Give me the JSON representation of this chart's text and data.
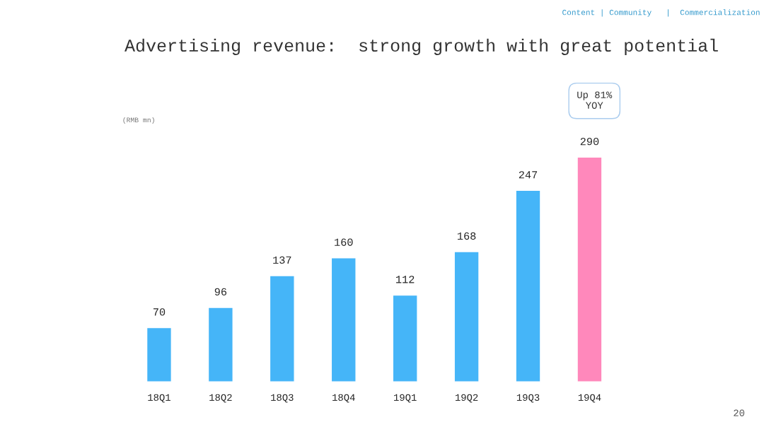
{
  "chart_data": {
    "type": "bar",
    "title": "Advertising revenue:  strong growth with great potential",
    "categories": [
      "18Q1",
      "18Q2",
      "18Q3",
      "18Q4",
      "19Q1",
      "19Q2",
      "19Q3",
      "19Q4"
    ],
    "values": [
      70,
      96,
      137,
      160,
      112,
      168,
      247,
      290
    ],
    "colors": [
      "#45b5f8",
      "#45b5f8",
      "#45b5f8",
      "#45b5f8",
      "#45b5f8",
      "#45b5f8",
      "#45b5f8",
      "#ff88bb"
    ],
    "data_labels": true,
    "grid": false,
    "legend": false,
    "tick_labels": "x",
    "annotations": [
      "Content | Community   |  Commercialization",
      "(RMB mn)",
      "Up 81% YOY",
      "20"
    ]
  }
}
